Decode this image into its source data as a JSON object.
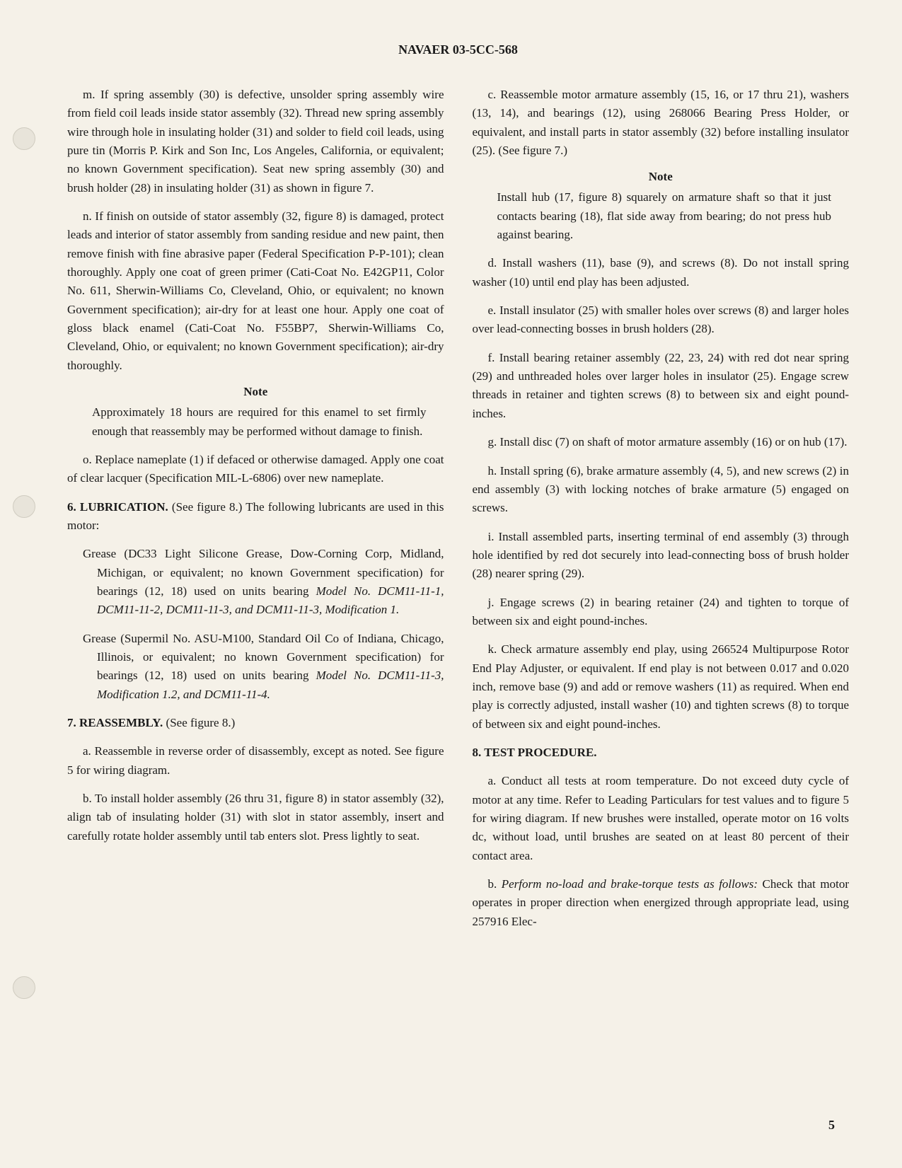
{
  "header": "NAVAER 03-5CC-568",
  "pageNumber": "5",
  "leftColumn": {
    "para_m": "m. If spring assembly (30) is defective, unsolder spring assembly wire from field coil leads inside stator assembly (32). Thread new spring assembly wire through hole in insulating holder (31) and solder to field coil leads, using pure tin (Morris P. Kirk and Son Inc, Los Angeles, California, or equivalent; no known Government specification). Seat new spring assembly (30) and brush holder (28) in insulating holder (31) as shown in figure 7.",
    "para_n": "n. If finish on outside of stator assembly (32, figure 8) is damaged, protect leads and interior of stator assembly from sanding residue and new paint, then remove finish with fine abrasive paper (Federal Specification P-P-101); clean thoroughly. Apply one coat of green primer (Cati-Coat No. E42GP11, Color No. 611, Sherwin-Williams Co, Cleveland, Ohio, or equivalent; no known Government specification); air-dry for at least one hour. Apply one coat of gloss black enamel (Cati-Coat No. F55BP7, Sherwin-Williams Co, Cleveland, Ohio, or equivalent; no known Government specification); air-dry thoroughly.",
    "note1_heading": "Note",
    "note1_text": "Approximately 18 hours are required for this enamel to set firmly enough that reassembly may be performed without damage to finish.",
    "para_o": "o. Replace nameplate (1) if defaced or otherwise damaged. Apply one coat of clear lacquer (Specification MIL-L-6806) over new nameplate.",
    "section6_heading": "6. LUBRICATION.",
    "section6_intro": " (See figure 8.) The following lubricants are used in this motor:",
    "grease1_prefix": "Grease (DC33 Light Silicone Grease, Dow-Corning Corp, Midland, Michigan, or equivalent; no known Government specification) for bearings (12, 18) used on units bearing ",
    "grease1_italic": "Model No. DCM11-11-1, DCM11-11-2, DCM11-11-3, and DCM11-11-3, Modification 1.",
    "grease2_prefix": "Grease (Supermil No. ASU-M100, Standard Oil Co of Indiana, Chicago, Illinois, or equivalent; no known Government specification) for bearings (12, 18) used on units bearing ",
    "grease2_italic": "Model No. DCM11-11-3, Modification 1.2, and DCM11-11-4.",
    "section7_heading": "7. REASSEMBLY.",
    "section7_intro": " (See figure 8.)",
    "para_7a": "a. Reassemble in reverse order of disassembly, except as noted. See figure 5 for wiring diagram.",
    "para_7b": "b. To install holder assembly (26 thru 31, figure 8) in stator assembly (32), align tab of insulating holder (31) with slot in stator assembly, insert and carefully rotate holder assembly until tab enters slot. Press lightly to seat."
  },
  "rightColumn": {
    "para_c": "c. Reassemble motor armature assembly (15, 16, or 17 thru 21), washers (13, 14), and bearings (12), using 268066 Bearing Press Holder, or equivalent, and install parts in stator assembly (32) before installing insulator (25). (See figure 7.)",
    "note2_heading": "Note",
    "note2_text": "Install hub (17, figure 8) squarely on armature shaft so that it just contacts bearing (18), flat side away from bearing; do not press hub against bearing.",
    "para_d": "d. Install washers (11), base (9), and screws (8). Do not install spring washer (10) until end play has been adjusted.",
    "para_e": "e. Install insulator (25) with smaller holes over screws (8) and larger holes over lead-connecting bosses in brush holders (28).",
    "para_f": "f. Install bearing retainer assembly (22, 23, 24) with red dot near spring (29) and unthreaded holes over larger holes in insulator (25). Engage screw threads in retainer and tighten screws (8) to between six and eight pound-inches.",
    "para_g": "g. Install disc (7) on shaft of motor armature assembly (16) or on hub (17).",
    "para_h": "h. Install spring (6), brake armature assembly (4, 5), and new screws (2) in end assembly (3) with locking notches of brake armature (5) engaged on screws.",
    "para_i": "i. Install assembled parts, inserting terminal of end assembly (3) through hole identified by red dot securely into lead-connecting boss of brush holder (28) nearer spring (29).",
    "para_j": "j. Engage screws (2) in bearing retainer (24) and tighten to torque of between six and eight pound-inches.",
    "para_k": "k. Check armature assembly end play, using 266524 Multipurpose Rotor End Play Adjuster, or equivalent. If end play is not between 0.017 and 0.020 inch, remove base (9) and add or remove washers (11) as required. When end play is correctly adjusted, install washer (10) and tighten screws (8) to torque of between six and eight pound-inches.",
    "section8_heading": "8. TEST PROCEDURE.",
    "para_8a": "a. Conduct all tests at room temperature. Do not exceed duty cycle of motor at any time. Refer to Leading Particulars for test values and to figure 5 for wiring diagram. If new brushes were installed, operate motor on 16 volts dc, without load, until brushes are seated on at least 80 percent of their contact area.",
    "para_8b_prefix": "b. ",
    "para_8b_italic": "Perform no-load and brake-torque tests as follows:",
    "para_8b_suffix": " Check that motor operates in proper direction when energized through appropriate lead, using 257916 Elec-"
  }
}
